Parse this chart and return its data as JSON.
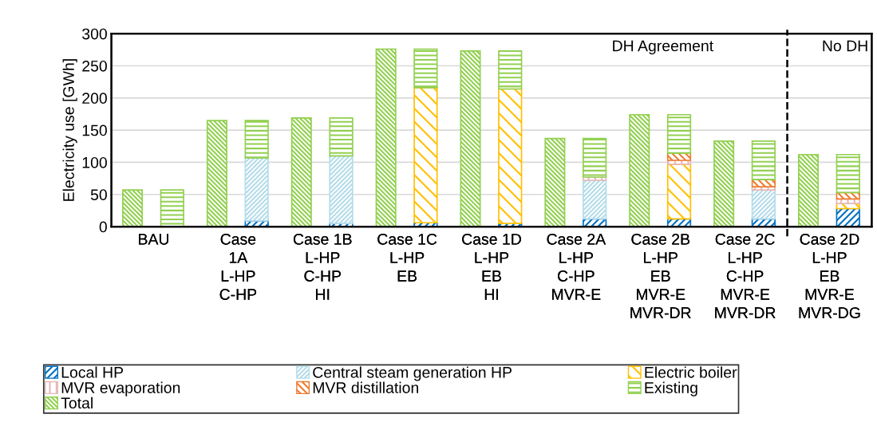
{
  "chart_data": [
    {
      "type": "bar",
      "ylabel": "Electricity use [GWh]",
      "categories": [
        "BAU",
        "Case\n1A\nL-HP\nC-HP",
        "Case 1B\nL-HP\nC-HP\nHI",
        "Case 1C\nL-HP\nEB",
        "Case 1D\nL-HP\nEB\nHI",
        "Case 2A\nL-HP\nC-HP\nMVR-E",
        "Case 2B\nL-HP\nEB\nMVR-E\nMVR-DR",
        "Case 2C\nL-HP\nC-HP\nMVR-E\nMVR-DR",
        "Case 2D\nL-HP\nEB\nMVR-E\nMVR-DG"
      ],
      "series": [
        {
          "name": "Total",
          "color": "#92d050",
          "values": [
            57,
            165,
            169,
            276,
            273,
            137,
            174,
            133,
            112
          ]
        }
      ],
      "ylim": [
        0,
        300
      ],
      "yticks": [
        0,
        50,
        100,
        150,
        200,
        250,
        300
      ],
      "grid": "y",
      "legend": "bottom"
    },
    {
      "type": "bar",
      "stacked": true,
      "tick_labels": "x",
      "categories": [
        "BAU",
        "Case\n1A\nL-HP\nC-HP",
        "Case 1B\nL-HP\nC-HP\nHI",
        "Case 1C\nL-HP\nEB",
        "Case 1D\nL-HP\nEB\nHI",
        "Case 2A\nL-HP\nC-HP\nMVR-E",
        "Case 2B\nL-HP\nEB\nMVR-E\nMVR-DR",
        "Case 2C\nL-HP\nC-HP\nMVR-E\nMVR-DR",
        "Case 2D\nL-HP\nEB\nMVR-E\nMVR-DG"
      ],
      "series": [
        {
          "name": "Local HP",
          "color": "#0070c0",
          "values": [
            null,
            9,
            5,
            6,
            5,
            12,
            12,
            12,
            28
          ]
        },
        {
          "name": "Central steam generation HP",
          "color": "#b4dcea",
          "values": [
            null,
            98,
            105,
            null,
            null,
            60,
            null,
            45,
            null
          ]
        },
        {
          "name": "Electric boiler",
          "color": "#ffc000",
          "values": [
            null,
            null,
            null,
            210,
            209,
            null,
            85,
            null,
            8
          ]
        },
        {
          "name": "MVR evaporation",
          "color": "#e6b8b7",
          "values": [
            null,
            null,
            null,
            null,
            null,
            5,
            6,
            5,
            7
          ]
        },
        {
          "name": "MVR distillation",
          "color": "#ed7d31",
          "values": [
            null,
            null,
            null,
            null,
            null,
            null,
            11,
            11,
            10
          ]
        },
        {
          "name": "Existing",
          "color": "#92d050",
          "values": [
            57,
            58,
            59,
            60,
            59,
            60,
            60,
            60,
            59
          ]
        }
      ],
      "ylim": [
        0,
        300
      ],
      "legend": "bottom",
      "annotations": [
        "DH Agreement",
        "No DH"
      ]
    }
  ]
}
